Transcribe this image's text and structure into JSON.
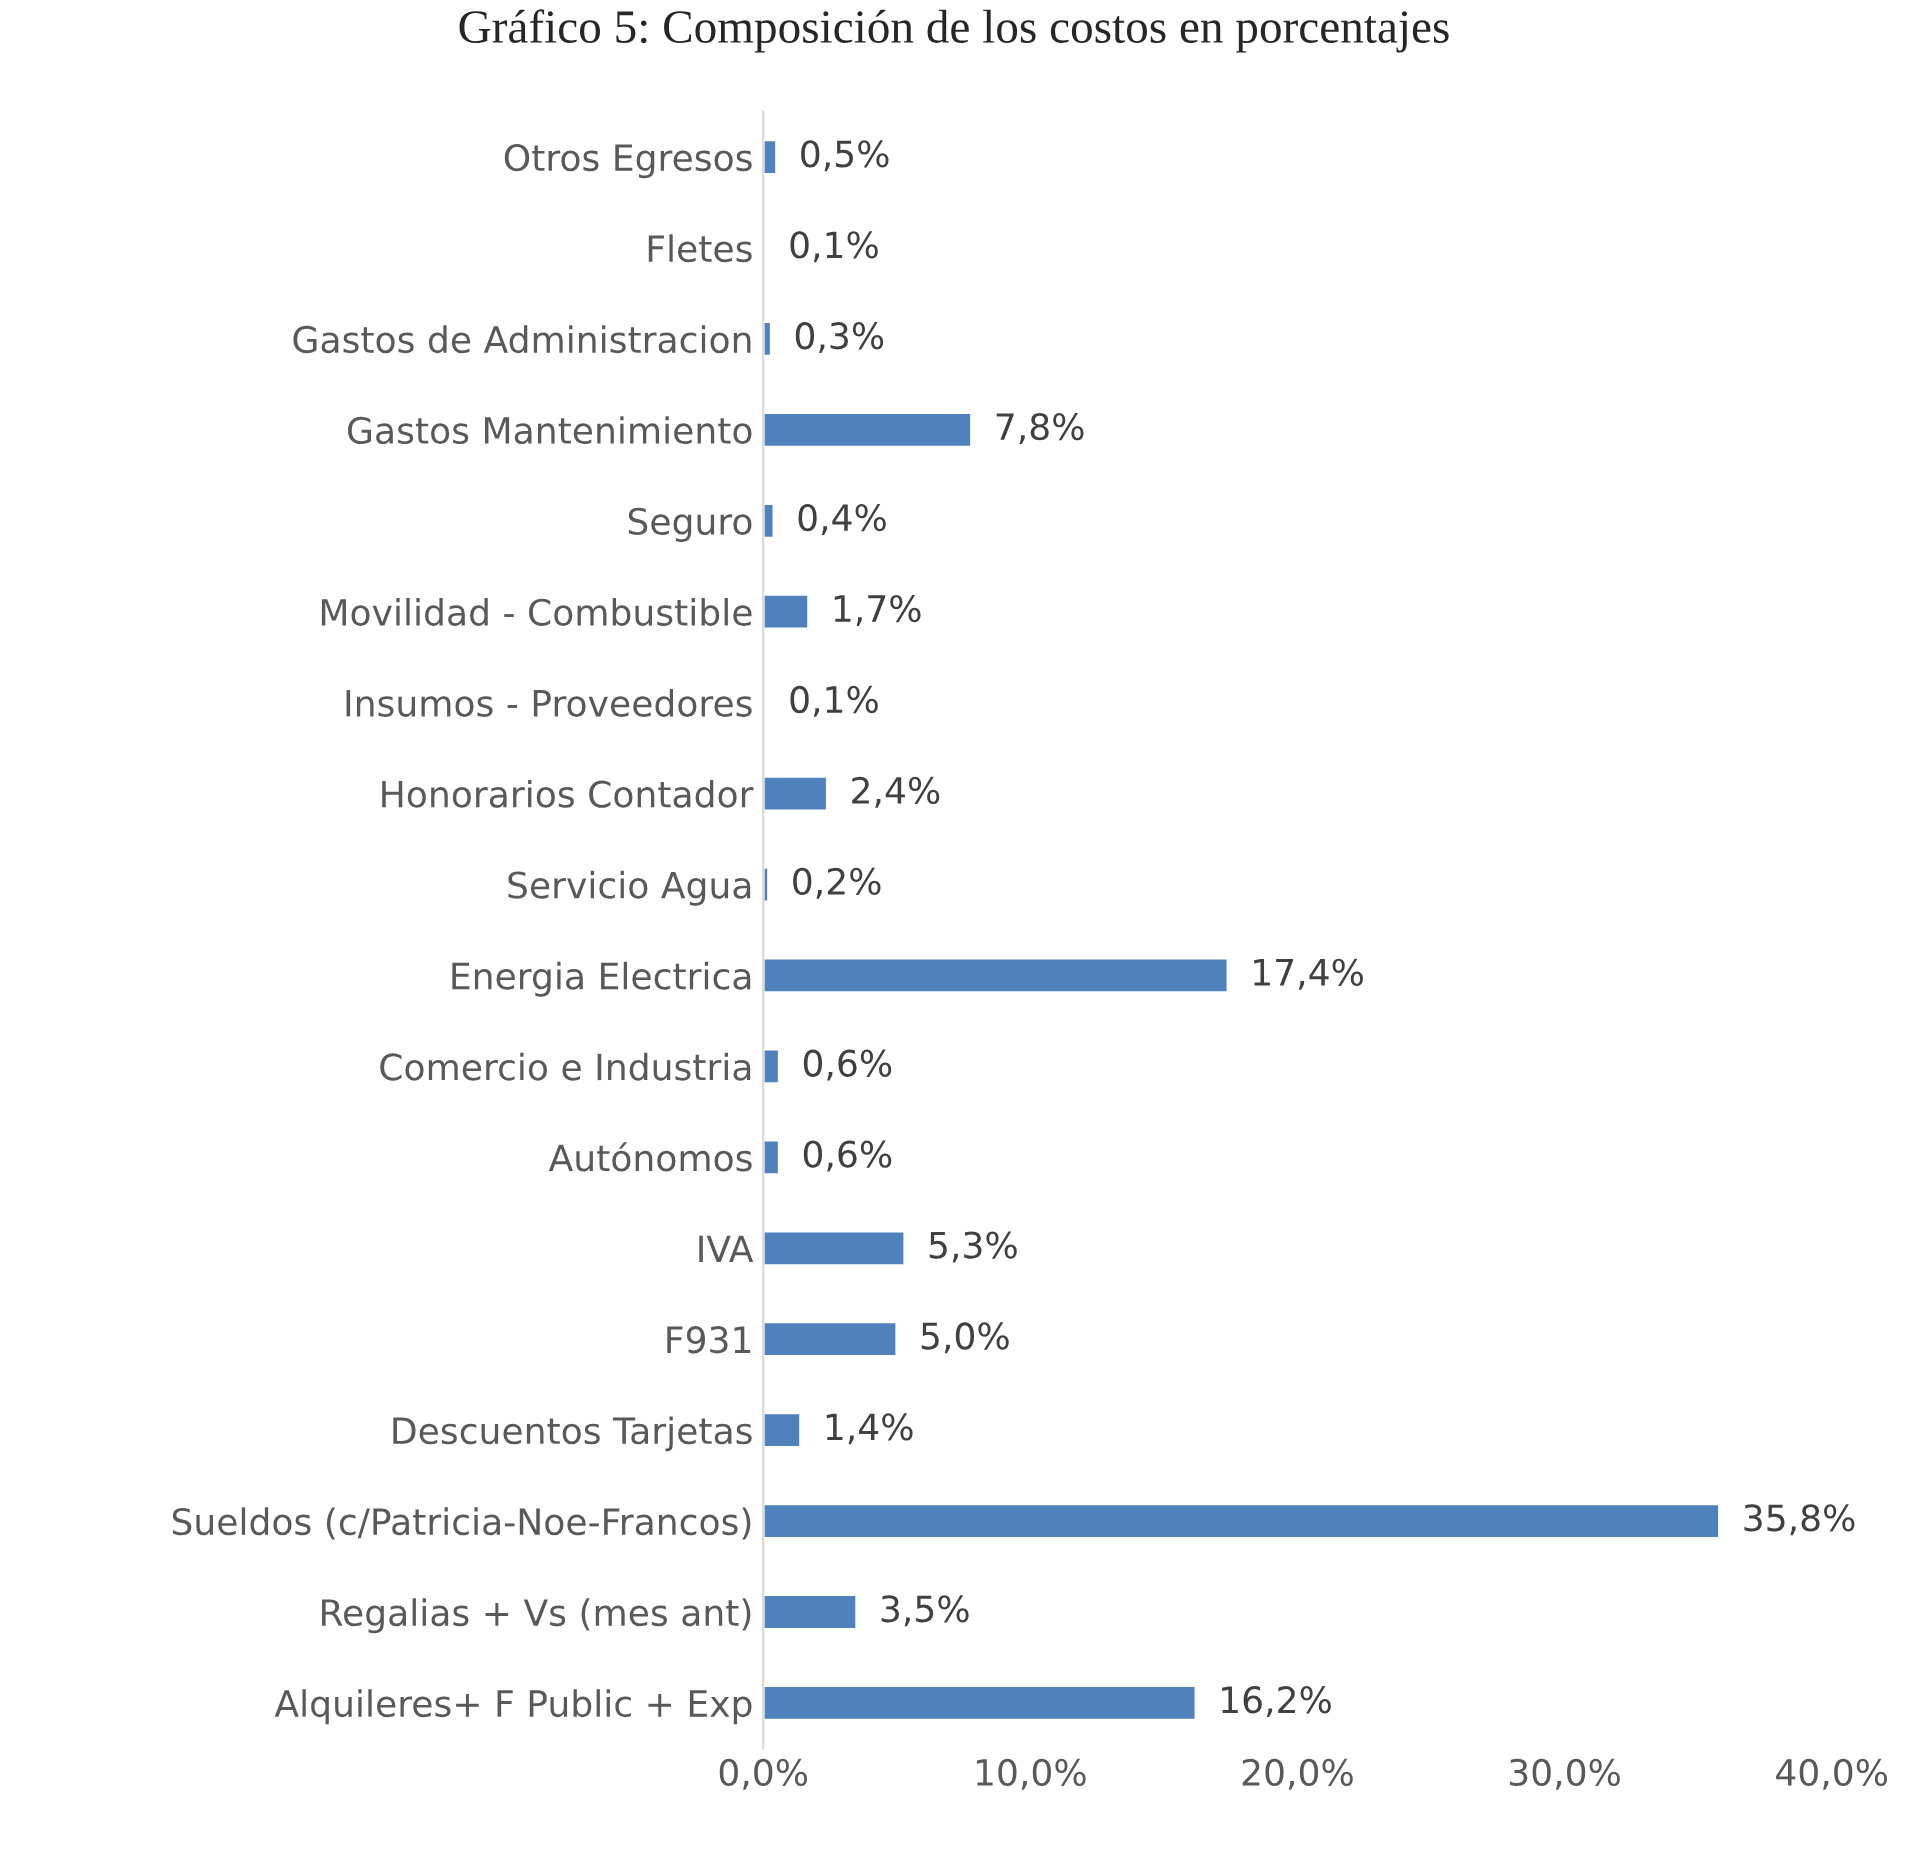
{
  "chart_data": {
    "type": "bar",
    "orientation": "horizontal",
    "title": "Gráfico 5: Composición de los costos en porcentajes",
    "categories": [
      "Otros Egresos",
      "Fletes",
      "Gastos de Administracion",
      "Gastos Mantenimiento",
      "Seguro",
      "Movilidad - Combustible",
      "Insumos - Proveedores",
      "Honorarios Contador",
      "Servicio Agua",
      "Energia Electrica",
      "Comercio e Industria",
      "Autónomos",
      "IVA",
      "F931",
      "Descuentos Tarjetas",
      "Sueldos (c/Patricia-Noe-Francos)",
      "Regalias + Vs (mes ant)",
      "Alquileres+ F Public + Exp"
    ],
    "values": [
      0.5,
      0.1,
      0.3,
      7.8,
      0.4,
      1.7,
      0.1,
      2.4,
      0.2,
      17.4,
      0.6,
      0.6,
      5.3,
      5.0,
      1.4,
      35.8,
      3.5,
      16.2
    ],
    "value_labels": [
      "0,5%",
      "0,1%",
      "0,3%",
      "7,8%",
      "0,4%",
      "1,7%",
      "0,1%",
      "2,4%",
      "0,2%",
      "17,4%",
      "0,6%",
      "0,6%",
      "5,3%",
      "5,0%",
      "1,4%",
      "35,8%",
      "3,5%",
      "16,2%"
    ],
    "color": "#4f81bd",
    "xlim": [
      0,
      40
    ],
    "xticks": [
      {
        "value": 0,
        "label": "0,0%"
      },
      {
        "value": 10,
        "label": "10,0%"
      },
      {
        "value": 20,
        "label": "20,0%"
      },
      {
        "value": 30,
        "label": "30,0%"
      },
      {
        "value": 40,
        "label": "40,0%"
      }
    ],
    "grid": false,
    "legend": false
  }
}
